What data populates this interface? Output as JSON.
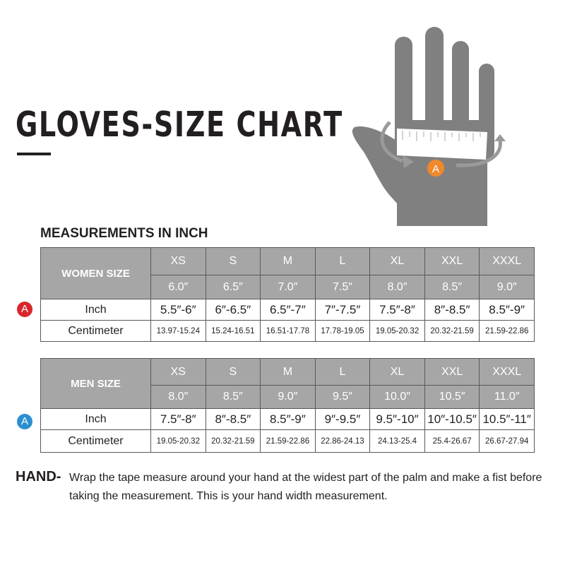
{
  "title": "GLOVES-SIZE CHART",
  "subtitle": "MEASUREMENTS IN INCH",
  "marker_label": "A",
  "colors": {
    "women_marker": "#d7262c",
    "men_marker": "#2b8fd0",
    "hand_marker": "#f0892b",
    "header_fill": "#a6a6a6"
  },
  "women": {
    "header": "WOMEN SIZE",
    "sizes": [
      "XS",
      "S",
      "M",
      "L",
      "XL",
      "XXL",
      "XXXL"
    ],
    "nominal": [
      "6.0″",
      "6.5″",
      "7.0″",
      "7.5″",
      "8.0″",
      "8.5″",
      "9.0″"
    ],
    "inch_label": "Inch",
    "inch": [
      "5.5″-6″",
      "6″-6.5″",
      "6.5″-7″",
      "7″-7.5″",
      "7.5″-8″",
      "8″-8.5″",
      "8.5″-9″"
    ],
    "cm_label": "Centimeter",
    "cm": [
      "13.97-15.24",
      "15.24-16.51",
      "16.51-17.78",
      "17.78-19.05",
      "19.05-20.32",
      "20.32-21.59",
      "21.59-22.86"
    ]
  },
  "men": {
    "header": "MEN SIZE",
    "sizes": [
      "XS",
      "S",
      "M",
      "L",
      "XL",
      "XXL",
      "XXXL"
    ],
    "nominal": [
      "8.0″",
      "8.5″",
      "9.0″",
      "9.5″",
      "10.0″",
      "10.5″",
      "11.0″"
    ],
    "inch_label": "Inch",
    "inch": [
      "7.5″-8″",
      "8″-8.5″",
      "8.5″-9″",
      "9″-9.5″",
      "9.5″-10″",
      "10″-10.5″",
      "10.5″-11″"
    ],
    "cm_label": "Centimeter",
    "cm": [
      "19.05-20.32",
      "20.32-21.59",
      "21.59-22.86",
      "22.86-24.13",
      "24.13-25.4",
      "25.4-26.67",
      "26.67-27.94"
    ]
  },
  "hand": {
    "label": "HAND-",
    "text": "Wrap the tape measure around your hand at the widest part of the palm and make a fist before taking the measurement. This is your hand width measurement."
  }
}
